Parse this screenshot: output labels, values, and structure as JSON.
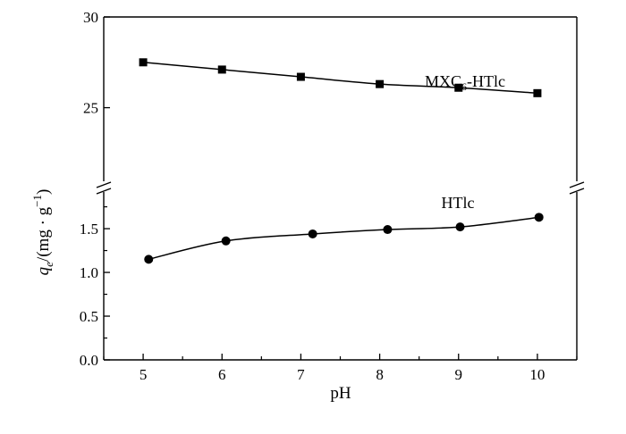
{
  "chart_data": {
    "type": "line",
    "xlabel": "pH",
    "ylabel": {
      "q": "q",
      "sub": "e",
      "rest": "/(mg · g",
      "sup": "−1",
      "close": ")"
    },
    "xlim": [
      4.5,
      10.5
    ],
    "x_ticks": [
      5,
      6,
      7,
      8,
      9,
      10
    ],
    "axis_break": true,
    "upper_segment": {
      "ylim": [
        20.5,
        30
      ],
      "ticks": [
        25,
        30
      ]
    },
    "lower_segment": {
      "ylim": [
        0,
        1.95
      ],
      "ticks": [
        0.0,
        0.5,
        1.0,
        1.5
      ]
    },
    "grid": false,
    "legend": "none",
    "series": [
      {
        "name": "MXC6-HTlc",
        "label_parts": {
          "main": "MXC",
          "sub": "6",
          "suffix": "-HTlc"
        },
        "marker": "square",
        "x": [
          5,
          6,
          7,
          8,
          9,
          10
        ],
        "y": [
          27.5,
          27.1,
          26.7,
          26.3,
          26.1,
          25.8
        ]
      },
      {
        "name": "HTlc",
        "label_parts": {
          "main": "HTlc",
          "sub": "",
          "suffix": ""
        },
        "marker": "circle",
        "x": [
          5.07,
          6.05,
          7.15,
          8.1,
          9.02,
          10.02
        ],
        "y": [
          1.15,
          1.36,
          1.44,
          1.49,
          1.52,
          1.63
        ]
      }
    ]
  }
}
